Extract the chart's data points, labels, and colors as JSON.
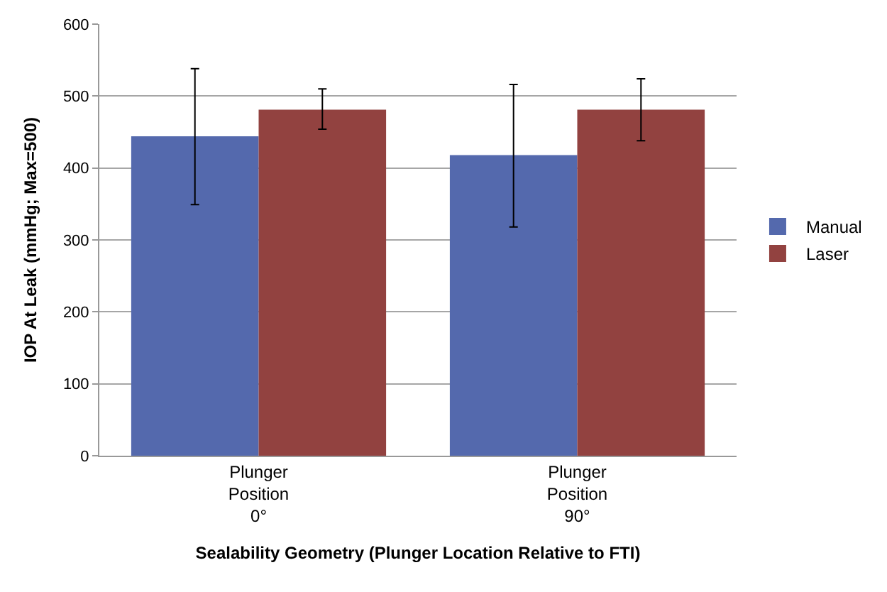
{
  "chart_data": {
    "type": "bar",
    "xlabel": "Sealability Geometry (Plunger Location Relative to FTI)",
    "ylabel": "IOP At Leak (mmHg; Max=500)",
    "categories": [
      "Plunger\nPosition\n0°",
      "Plunger\nPosition\n90°"
    ],
    "series": [
      {
        "name": "Manual",
        "color": "#5469ad",
        "values": [
          444,
          418
        ],
        "errors": [
          [
            349,
            538
          ],
          [
            318,
            516
          ]
        ]
      },
      {
        "name": "Laser",
        "color": "#924240",
        "values": [
          481,
          481
        ],
        "errors": [
          [
            454,
            510
          ],
          [
            438,
            524
          ]
        ]
      }
    ],
    "ylim": [
      0,
      600
    ],
    "yticks": [
      0,
      100,
      200,
      300,
      400,
      500,
      600
    ],
    "grid": "y",
    "legend": "right"
  }
}
